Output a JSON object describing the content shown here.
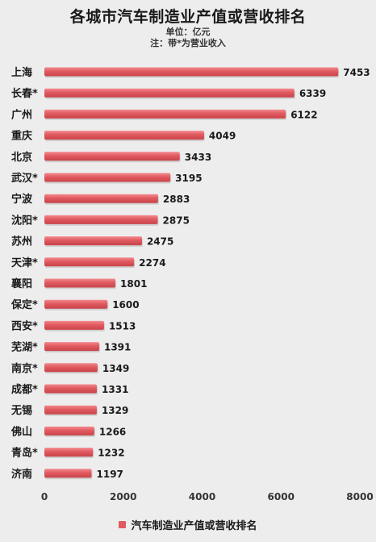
{
  "chart_data": {
    "type": "bar",
    "orientation": "horizontal",
    "title": "各城市汽车制造业产值或营收排名",
    "subtitle_lines": [
      "单位：亿元",
      "注：带*为营业收入"
    ],
    "categories": [
      "上海",
      "长春*",
      "广州",
      "重庆",
      "北京",
      "武汉*",
      "宁波",
      "沈阳*",
      "苏州",
      "天津*",
      "襄阳",
      "保定*",
      "西安*",
      "芜湖*",
      "南京*",
      "成都*",
      "无锡",
      "佛山",
      "青岛*",
      "济南"
    ],
    "series": [
      {
        "name": "汽车制造业产值或营收排名",
        "values": [
          7453,
          6339,
          6122,
          4049,
          3433,
          3195,
          2883,
          2875,
          2475,
          2274,
          1801,
          1600,
          1513,
          1391,
          1349,
          1331,
          1329,
          1266,
          1232,
          1197
        ]
      }
    ],
    "xlim": [
      0,
      8000
    ],
    "xticks": [
      0,
      2000,
      4000,
      6000,
      8000
    ],
    "xlabel": "",
    "ylabel": "",
    "grid": false,
    "legend_position": "bottom",
    "bar_color": "#e05a60"
  }
}
